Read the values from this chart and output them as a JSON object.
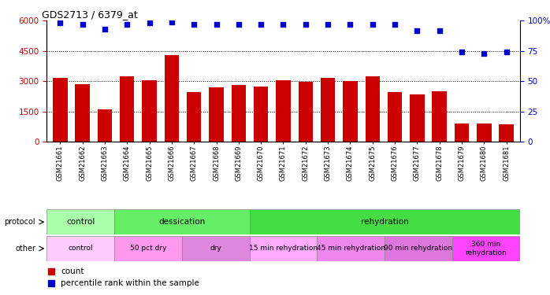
{
  "title": "GDS2713 / 6379_at",
  "samples": [
    "GSM21661",
    "GSM21662",
    "GSM21663",
    "GSM21664",
    "GSM21665",
    "GSM21666",
    "GSM21667",
    "GSM21668",
    "GSM21669",
    "GSM21670",
    "GSM21671",
    "GSM21672",
    "GSM21673",
    "GSM21674",
    "GSM21675",
    "GSM21676",
    "GSM21677",
    "GSM21678",
    "GSM21679",
    "GSM21680",
    "GSM21681"
  ],
  "bar_values": [
    3150,
    2850,
    1600,
    3250,
    3050,
    4300,
    2450,
    2700,
    2800,
    2750,
    3050,
    2950,
    3150,
    3000,
    3250,
    2450,
    2350,
    2500,
    900,
    900,
    850
  ],
  "dot_values": [
    98,
    97,
    93,
    97,
    98,
    99,
    97,
    97,
    97,
    97,
    97,
    97,
    97,
    97,
    97,
    97,
    92,
    92,
    74,
    73,
    74
  ],
  "bar_color": "#cc0000",
  "dot_color": "#0000cc",
  "ylim_left": [
    0,
    6000
  ],
  "ylim_right": [
    0,
    100
  ],
  "yticks_left": [
    0,
    1500,
    3000,
    4500,
    6000
  ],
  "yticks_right": [
    0,
    25,
    50,
    75,
    100
  ],
  "protocol_groups": [
    {
      "label": "control",
      "start": 0,
      "end": 3,
      "color": "#aaffaa"
    },
    {
      "label": "dessication",
      "start": 3,
      "end": 9,
      "color": "#66ee66"
    },
    {
      "label": "rehydration",
      "start": 9,
      "end": 21,
      "color": "#44dd44"
    }
  ],
  "other_groups": [
    {
      "label": "control",
      "start": 0,
      "end": 3,
      "color": "#ffccff"
    },
    {
      "label": "50 pct dry",
      "start": 3,
      "end": 6,
      "color": "#ff99ee"
    },
    {
      "label": "dry",
      "start": 6,
      "end": 9,
      "color": "#dd88dd"
    },
    {
      "label": "15 min rehydration",
      "start": 9,
      "end": 12,
      "color": "#ffaaff"
    },
    {
      "label": "45 min rehydration",
      "start": 12,
      "end": 15,
      "color": "#ee88ee"
    },
    {
      "label": "90 min rehydration",
      "start": 15,
      "end": 18,
      "color": "#dd77dd"
    },
    {
      "label": "360 min\nrehydration",
      "start": 18,
      "end": 21,
      "color": "#ff44ff"
    }
  ],
  "bg_color": "#ffffff",
  "title_fontsize": 9
}
